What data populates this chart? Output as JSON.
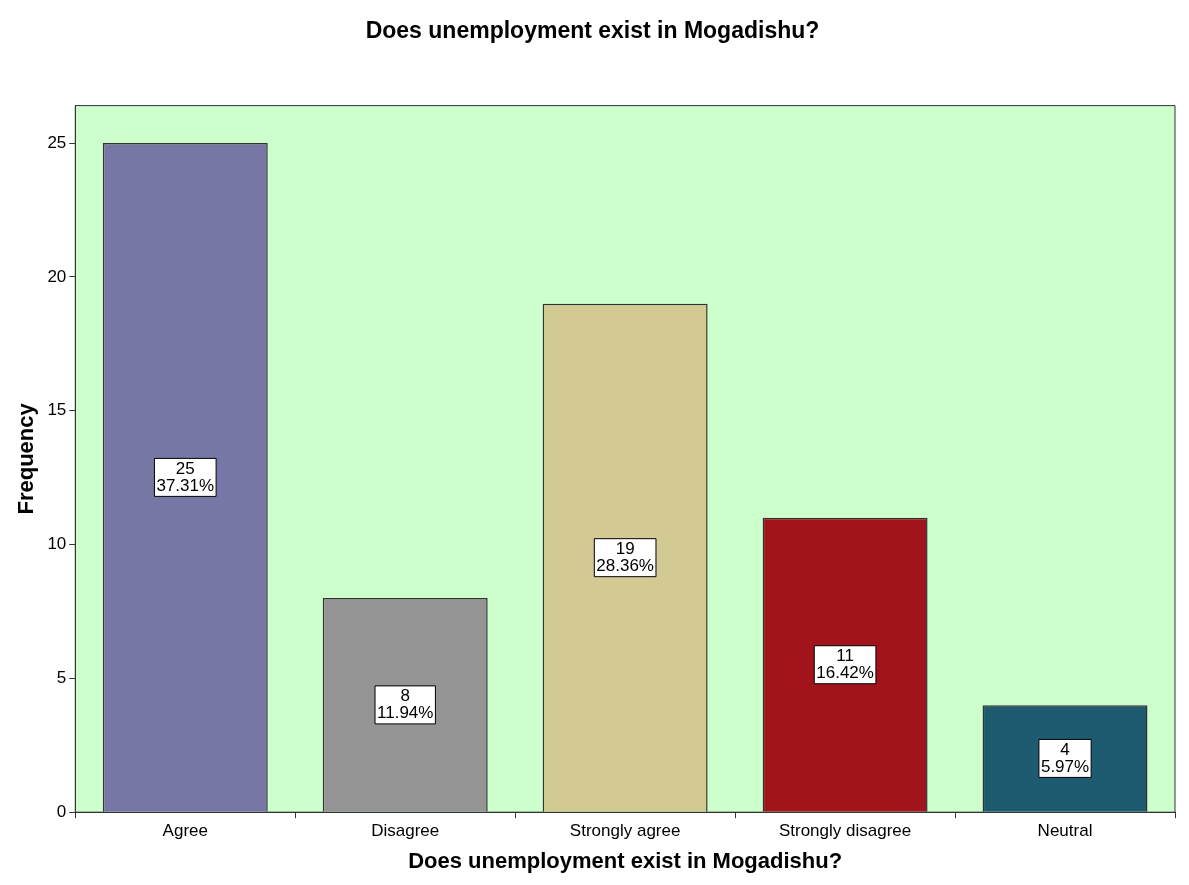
{
  "chart_data": {
    "type": "bar",
    "title": "Does unemployment exist in Mogadishu?",
    "xlabel": "Does unemployment exist in Mogadishu?",
    "ylabel": "Frequency",
    "categories": [
      "Agree",
      "Disagree",
      "Strongly agree",
      "Strongly disagree",
      "Neutral"
    ],
    "values": [
      25,
      8,
      19,
      11,
      4
    ],
    "colors": [
      "#7777a6",
      "#959595",
      "#d3c993",
      "#a2141b",
      "#1e5b70"
    ],
    "value_labels": [
      "25\n37.31%",
      "8\n11.94%",
      "19\n28.36%",
      "11\n16.42%",
      "4\n5.97%"
    ],
    "ylim": [
      0,
      26.4
    ],
    "yticks": [
      0,
      5,
      10,
      15,
      20,
      25
    ],
    "grid": false,
    "legend": false
  }
}
